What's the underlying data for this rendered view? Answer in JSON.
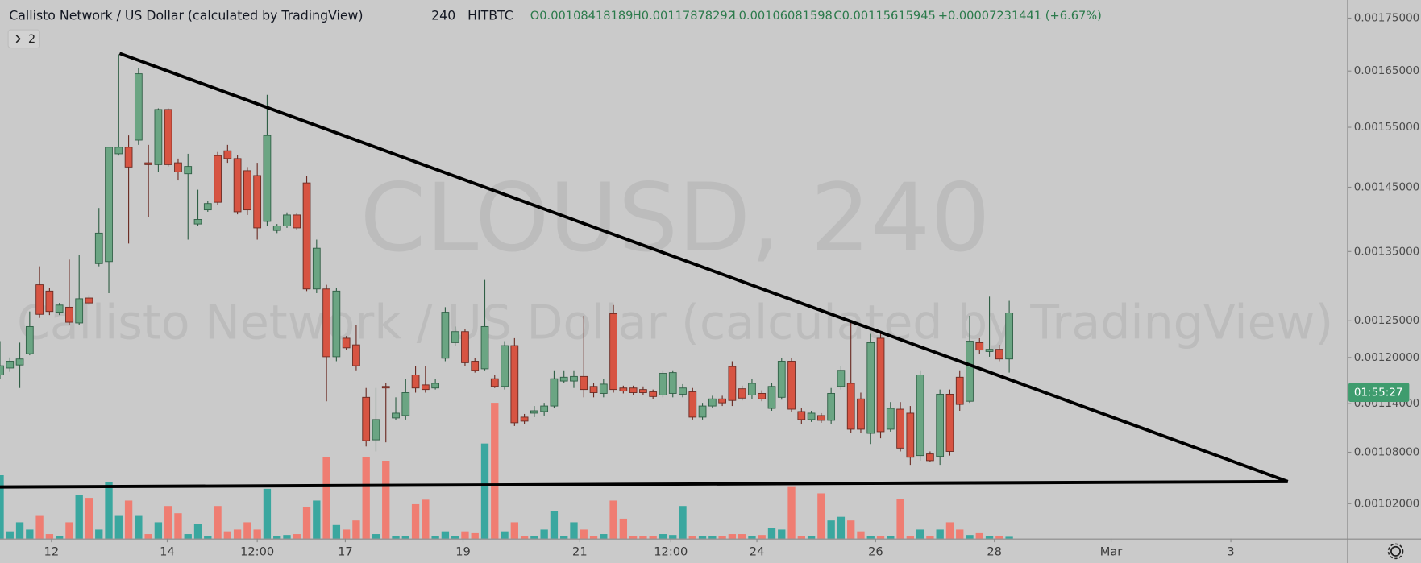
{
  "chart_data": {
    "type": "candlestick",
    "title": "Callisto Network / US Dollar (calculated by TradingView)",
    "interval": "240",
    "exchange": "HITBTC",
    "ohlc": {
      "open": "O0.00108418189",
      "high": "H0.00117878292",
      "low": "L0.00106081598",
      "close": "C0.00115615945",
      "change": "+0.00007231441 (+6.67%)"
    },
    "indicator_toggle": "2",
    "watermark": {
      "symbol": "CLOUSD, 240",
      "name": "Callisto Network / US Dollar (calculated by TradingView)"
    },
    "countdown": "01:55:27",
    "log_scale": true,
    "up_color": "#6ba583",
    "down_color": "#d75442",
    "volume_up_color": "#3aa79f",
    "volume_down_color": "#ef7d72",
    "open": [
      0.001177,
      0.001186,
      0.00119,
      0.001205,
      0.001301,
      0.001292,
      0.001262,
      0.001269,
      0.001247,
      0.001282,
      0.001332,
      0.001335,
      0.001505,
      0.001516,
      0.001528,
      0.00149,
      0.001487,
      0.001581,
      0.00149,
      0.001472,
      0.001392,
      0.001414,
      0.001502,
      0.00151,
      0.001497,
      0.001477,
      0.001469,
      0.001396,
      0.001382,
      0.001389,
      0.001406,
      0.001457,
      0.001295,
      0.001295,
      0.001201,
      0.001226,
      0.001217,
      0.001148,
      0.001095,
      0.001162,
      0.001122,
      0.001125,
      0.001177,
      0.001164,
      0.00116,
      0.001199,
      0.00122,
      0.001235,
      0.001195,
      0.001185,
      0.001172,
      0.001162,
      0.001216,
      0.001123,
      0.001128,
      0.00113,
      0.001137,
      0.001169,
      0.001169,
      0.001175,
      0.001162,
      0.001153,
      0.00126,
      0.00116,
      0.00116,
      0.001158,
      0.001155,
      0.001151,
      0.001153,
      0.001152,
      0.001155,
      0.001123,
      0.001137,
      0.001146,
      0.001188,
      0.001159,
      0.001151,
      0.001153,
      0.001134,
      0.001148,
      0.001195,
      0.00113,
      0.00112,
      0.001125,
      0.001119,
      0.001162,
      0.001166,
      0.001146,
      0.001103,
      0.001226,
      0.001108,
      0.001133,
      0.001128,
      0.001076,
      0.001078,
      0.001075,
      0.001152,
      0.001174,
      0.001143,
      0.00122,
      0.001208,
      0.001211,
      0.001198
    ],
    "high": [
      0.001222,
      0.0012,
      0.00122,
      0.001263,
      0.001328,
      0.001296,
      0.001275,
      0.001338,
      0.001345,
      0.001286,
      0.001417,
      0.001516,
      0.001681,
      0.001536,
      0.001656,
      0.00152,
      0.001583,
      0.001583,
      0.001497,
      0.001505,
      0.001446,
      0.001428,
      0.001508,
      0.00152,
      0.001503,
      0.001483,
      0.00149,
      0.001607,
      0.001392,
      0.00141,
      0.001409,
      0.001468,
      0.001368,
      0.001301,
      0.001297,
      0.001229,
      0.001244,
      0.00116,
      0.00116,
      0.001166,
      0.001148,
      0.001172,
      0.001189,
      0.001189,
      0.001172,
      0.001269,
      0.001242,
      0.001238,
      0.001199,
      0.001308,
      0.001177,
      0.001222,
      0.001226,
      0.001127,
      0.001137,
      0.001141,
      0.001183,
      0.001183,
      0.001183,
      0.001257,
      0.001166,
      0.001172,
      0.001272,
      0.001163,
      0.001163,
      0.001162,
      0.001158,
      0.001183,
      0.001183,
      0.001165,
      0.00116,
      0.001141,
      0.00115,
      0.00115,
      0.001195,
      0.001163,
      0.001172,
      0.001157,
      0.001166,
      0.001199,
      0.001199,
      0.001134,
      0.001131,
      0.001128,
      0.00116,
      0.001189,
      0.00125,
      0.001154,
      0.001232,
      0.001232,
      0.001142,
      0.001142,
      0.001137,
      0.001183,
      0.001081,
      0.001158,
      0.001158,
      0.001183,
      0.001257,
      0.001226,
      0.001284,
      0.001217,
      0.001278
    ],
    "low": [
      0.001172,
      0.001181,
      0.00116,
      0.001203,
      0.001254,
      0.001258,
      0.001258,
      0.001244,
      0.001244,
      0.001272,
      0.001328,
      0.001289,
      0.001502,
      0.001362,
      0.00152,
      0.001403,
      0.001475,
      0.001484,
      0.001461,
      0.001368,
      0.001389,
      0.001411,
      0.001422,
      0.00149,
      0.001407,
      0.001406,
      0.001368,
      0.001389,
      0.001378,
      0.001386,
      0.001383,
      0.001292,
      0.001289,
      0.001143,
      0.001195,
      0.00121,
      0.001183,
      0.001087,
      0.001081,
      0.001092,
      0.001119,
      0.00112,
      0.001154,
      0.001154,
      0.001158,
      0.001195,
      0.001215,
      0.001189,
      0.00118,
      0.001183,
      0.00116,
      0.001158,
      0.001112,
      0.001114,
      0.001123,
      0.001125,
      0.001134,
      0.001166,
      0.00116,
      0.001148,
      0.001148,
      0.001148,
      0.001154,
      0.001153,
      0.001151,
      0.001151,
      0.001146,
      0.001148,
      0.001148,
      0.001148,
      0.00112,
      0.00112,
      0.001134,
      0.001137,
      0.001137,
      0.001144,
      0.001146,
      0.001143,
      0.001131,
      0.001145,
      0.001129,
      0.001114,
      0.001117,
      0.001116,
      0.001114,
      0.001158,
      0.001103,
      0.001103,
      0.00109,
      0.001097,
      0.001105,
      0.001081,
      0.001065,
      0.00107,
      0.001068,
      0.001065,
      0.001076,
      0.001131,
      0.001141,
      0.001205,
      0.001201,
      0.001195,
      0.00118
    ],
    "close": [
      0.001189,
      0.001195,
      0.001198,
      0.001242,
      0.001259,
      0.001263,
      0.001272,
      0.001248,
      0.001281,
      0.001275,
      0.001378,
      0.001516,
      0.001516,
      0.001483,
      0.001645,
      0.001487,
      0.001581,
      0.001487,
      0.001475,
      0.001484,
      0.001399,
      0.001424,
      0.001426,
      0.001497,
      0.001411,
      0.001414,
      0.001386,
      0.001536,
      0.001389,
      0.001406,
      0.001386,
      0.001295,
      0.001355,
      0.001201,
      0.001292,
      0.001213,
      0.001189,
      0.001094,
      0.00112,
      0.00116,
      0.001128,
      0.001154,
      0.00116,
      0.001158,
      0.001166,
      0.001262,
      0.001235,
      0.001193,
      0.001183,
      0.001242,
      0.001162,
      0.001216,
      0.001116,
      0.001118,
      0.001131,
      0.001137,
      0.001172,
      0.001174,
      0.001175,
      0.001158,
      0.001154,
      0.001165,
      0.001158,
      0.001156,
      0.001154,
      0.001154,
      0.001149,
      0.001179,
      0.00118,
      0.00116,
      0.001123,
      0.001137,
      0.001146,
      0.001141,
      0.001144,
      0.001147,
      0.001166,
      0.001146,
      0.001162,
      0.001195,
      0.001133,
      0.00112,
      0.001128,
      0.001119,
      0.001153,
      0.001183,
      0.001108,
      0.001108,
      0.00122,
      0.001105,
      0.001134,
      0.001085,
      0.001074,
      0.001177,
      0.00107,
      0.001152,
      0.001081,
      0.001139,
      0.001222,
      0.00121,
      0.001211,
      0.001198,
      0.001261
    ],
    "volume": [
      70,
      8,
      18,
      10,
      25,
      5,
      3,
      18,
      48,
      45,
      10,
      62,
      25,
      42,
      25,
      5,
      18,
      36,
      28,
      5,
      16,
      3,
      36,
      8,
      10,
      18,
      10,
      55,
      3,
      4,
      5,
      35,
      42,
      90,
      15,
      10,
      20,
      90,
      5,
      86,
      3,
      3,
      38,
      43,
      3,
      8,
      3,
      8,
      6,
      105,
      150,
      8,
      18,
      3,
      3,
      10,
      30,
      3,
      18,
      10,
      3,
      5,
      42,
      22,
      3,
      3,
      3,
      5,
      4,
      36,
      3,
      3,
      3,
      3,
      5,
      5,
      3,
      4,
      12,
      10,
      57,
      3,
      3,
      50,
      20,
      24,
      20,
      8,
      3,
      3,
      3,
      44,
      3,
      10,
      3,
      10,
      18,
      10,
      4,
      6,
      3,
      3,
      2
    ],
    "xlim": [
      0,
      136.2
    ],
    "xticks": [
      {
        "value": 5.2,
        "label": "12"
      },
      {
        "value": 16.9,
        "label": "14"
      },
      {
        "value": 26.0,
        "label": "12:00"
      },
      {
        "value": 34.9,
        "label": "17"
      },
      {
        "value": 46.8,
        "label": "19"
      },
      {
        "value": 58.6,
        "label": "21"
      },
      {
        "value": 67.8,
        "label": "12:00"
      },
      {
        "value": 76.5,
        "label": "24"
      },
      {
        "value": 88.5,
        "label": "26"
      },
      {
        "value": 100.5,
        "label": "28"
      },
      {
        "value": 112.3,
        "label": "Mar"
      },
      {
        "value": 124.4,
        "label": "3"
      }
    ],
    "ylim": [
      0.0009812,
      0.0017856
    ],
    "yticks": [
      {
        "value": 0.00175,
        "label": "0.00175000"
      },
      {
        "value": 0.00165,
        "label": "0.00165000"
      },
      {
        "value": 0.00155,
        "label": "0.00155000"
      },
      {
        "value": 0.00145,
        "label": "0.00145000"
      },
      {
        "value": 0.00135,
        "label": "0.00135000"
      },
      {
        "value": 0.00125,
        "label": "0.00125000"
      },
      {
        "value": 0.0012,
        "label": "0.00120000"
      },
      {
        "value": 0.00114,
        "label": "0.00114000"
      },
      {
        "value": 0.00108,
        "label": "0.00108000"
      },
      {
        "value": 0.00102,
        "label": "0.00102000"
      }
    ]
  }
}
